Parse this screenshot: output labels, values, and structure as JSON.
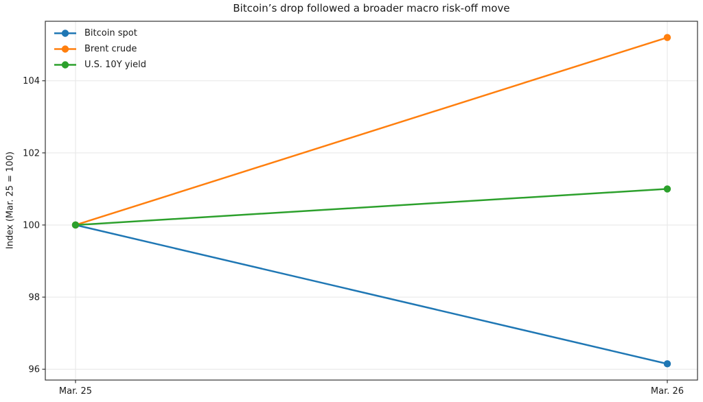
{
  "chart_data": {
    "type": "line",
    "title": "Bitcoin’s drop followed a broader macro risk-off move",
    "xlabel": "",
    "ylabel": "Index (Mar. 25 = 100)",
    "categories": [
      "Mar. 25",
      "Mar. 26"
    ],
    "series": [
      {
        "name": "Bitcoin spot",
        "color": "#1f77b4",
        "values": [
          100,
          96.15
        ]
      },
      {
        "name": "Brent crude",
        "color": "#ff7f0e",
        "values": [
          100,
          105.2
        ]
      },
      {
        "name": "U.S. 10Y yield",
        "color": "#2ca02c",
        "values": [
          100,
          101.0
        ]
      }
    ],
    "yticks": [
      96,
      98,
      100,
      102,
      104
    ],
    "ylim": [
      95.7,
      105.65
    ],
    "grid": true,
    "legend_position": "upper left"
  }
}
